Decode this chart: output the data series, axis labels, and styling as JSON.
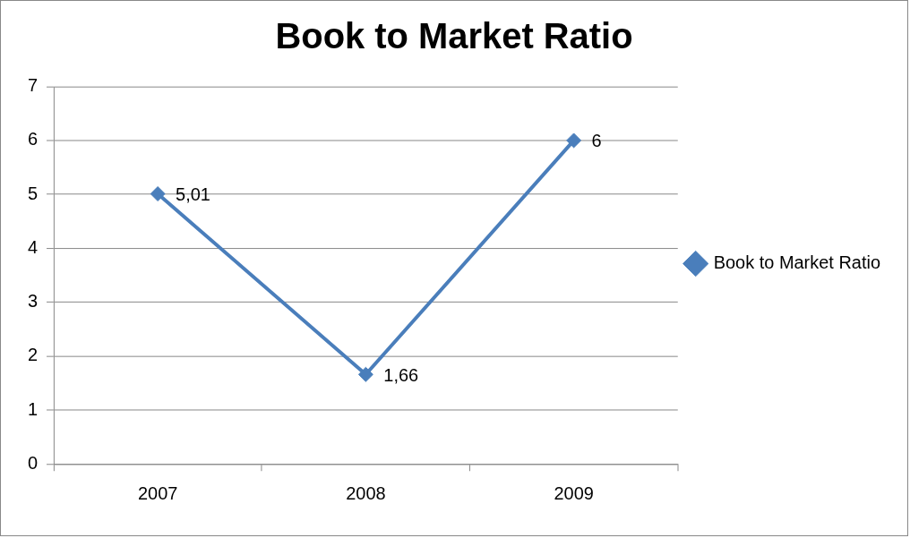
{
  "chart_data": {
    "type": "line",
    "title": "Book to Market Ratio",
    "categories": [
      "2007",
      "2008",
      "2009"
    ],
    "series": [
      {
        "name": "Book to Market Ratio",
        "color": "#4a7ebb",
        "values": [
          5.01,
          1.66,
          6
        ],
        "value_labels": [
          "5,01",
          "1,66",
          "6"
        ]
      }
    ],
    "ylim": [
      0,
      7
    ],
    "yticks": [
      0,
      1,
      2,
      3,
      4,
      5,
      6,
      7
    ],
    "grid": "y",
    "legend": "right",
    "marker": "diamond",
    "line_style": "solid"
  }
}
